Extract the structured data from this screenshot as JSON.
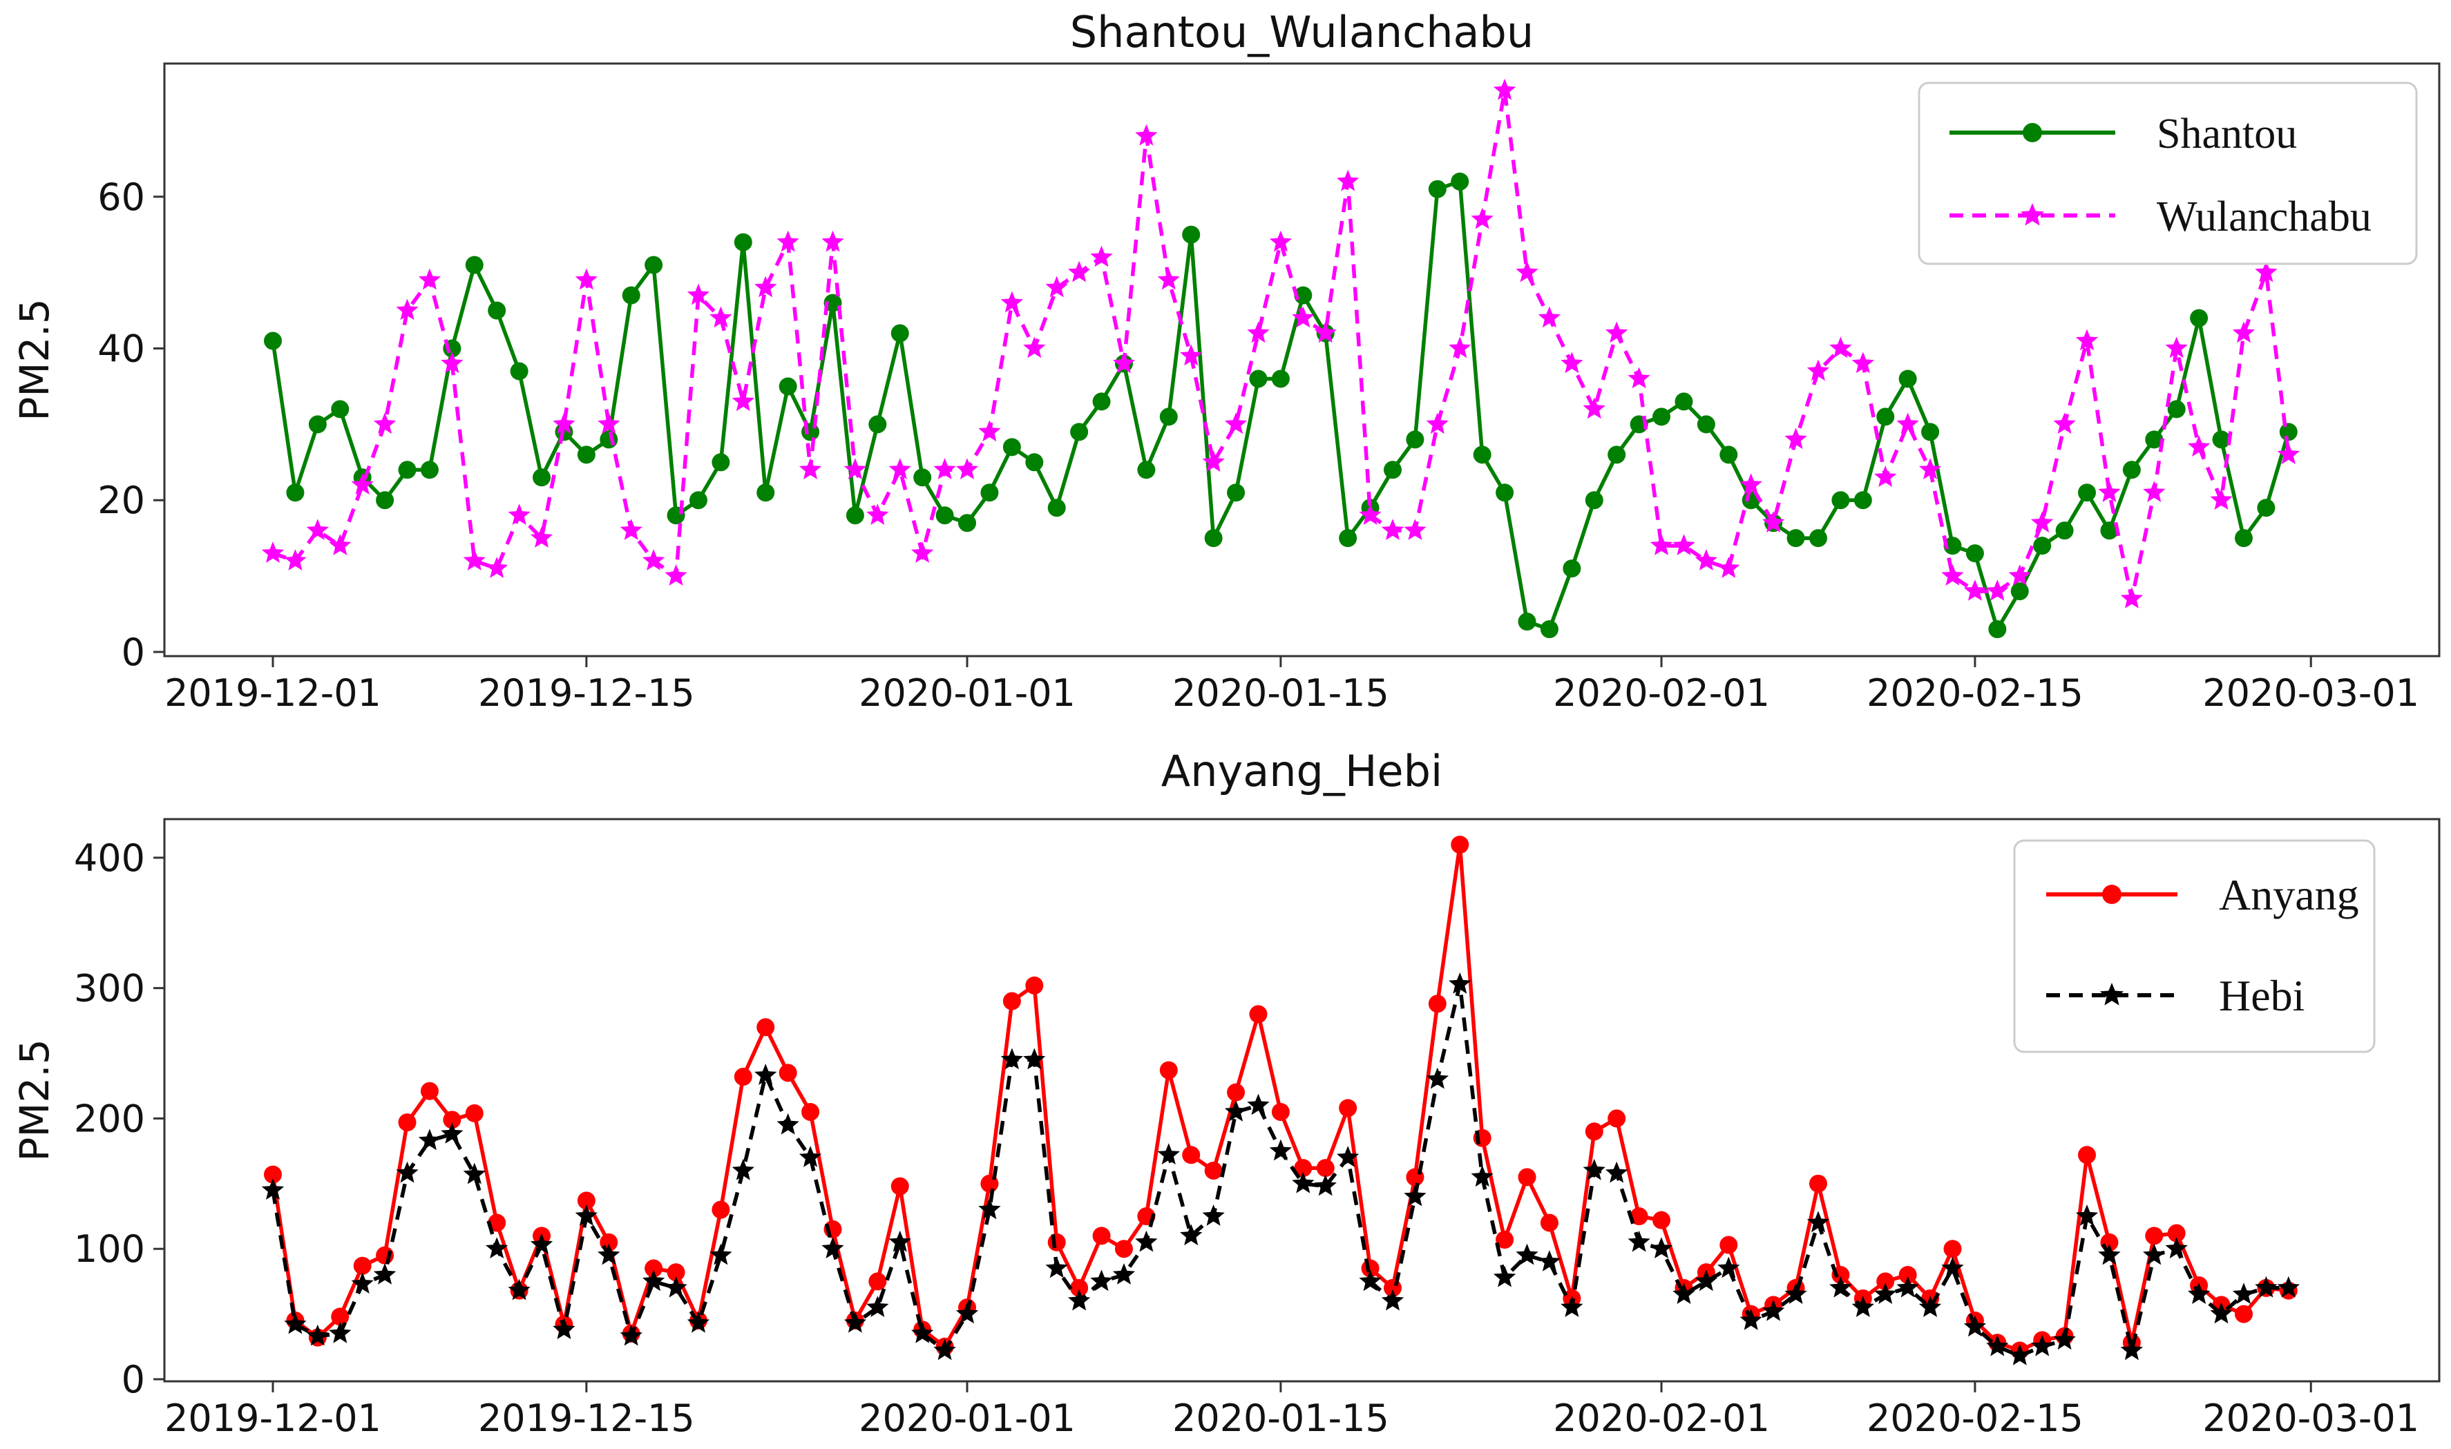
{
  "page": {
    "background": "#ffffff"
  },
  "dates": [
    "2019-12-01",
    "2019-12-02",
    "2019-12-03",
    "2019-12-04",
    "2019-12-05",
    "2019-12-06",
    "2019-12-07",
    "2019-12-08",
    "2019-12-09",
    "2019-12-10",
    "2019-12-11",
    "2019-12-12",
    "2019-12-13",
    "2019-12-14",
    "2019-12-15",
    "2019-12-16",
    "2019-12-17",
    "2019-12-18",
    "2019-12-19",
    "2019-12-20",
    "2019-12-21",
    "2019-12-22",
    "2019-12-23",
    "2019-12-24",
    "2019-12-25",
    "2019-12-26",
    "2019-12-27",
    "2019-12-28",
    "2019-12-29",
    "2019-12-30",
    "2019-12-31",
    "2020-01-01",
    "2020-01-02",
    "2020-01-03",
    "2020-01-04",
    "2020-01-05",
    "2020-01-06",
    "2020-01-07",
    "2020-01-08",
    "2020-01-09",
    "2020-01-10",
    "2020-01-11",
    "2020-01-12",
    "2020-01-13",
    "2020-01-14",
    "2020-01-15",
    "2020-01-16",
    "2020-01-17",
    "2020-01-18",
    "2020-01-19",
    "2020-01-20",
    "2020-01-21",
    "2020-01-22",
    "2020-01-23",
    "2020-01-24",
    "2020-01-25",
    "2020-01-26",
    "2020-01-27",
    "2020-01-28",
    "2020-01-29",
    "2020-01-30",
    "2020-01-31",
    "2020-02-01",
    "2020-02-02",
    "2020-02-03",
    "2020-02-04",
    "2020-02-05",
    "2020-02-06",
    "2020-02-07",
    "2020-02-08",
    "2020-02-09",
    "2020-02-10",
    "2020-02-11",
    "2020-02-12",
    "2020-02-13",
    "2020-02-14",
    "2020-02-15",
    "2020-02-16",
    "2020-02-17",
    "2020-02-18",
    "2020-02-19",
    "2020-02-20",
    "2020-02-21",
    "2020-02-22",
    "2020-02-23",
    "2020-02-24",
    "2020-02-25",
    "2020-02-26",
    "2020-02-27",
    "2020-02-28",
    "2020-02-29"
  ],
  "chart_data": [
    {
      "type": "line",
      "title": "Shantou_Wulanchabu",
      "xlabel": "",
      "ylabel": "PM2.5",
      "grid": false,
      "legend_position": "upper right",
      "x_tick_labels": [
        "2019-12-01",
        "2019-12-15",
        "2020-01-01",
        "2020-01-15",
        "2020-02-01",
        "2020-02-15",
        "2020-03-01"
      ],
      "x_tick_days": [
        0,
        14,
        31,
        45,
        62,
        76,
        91
      ],
      "y_ticks": [
        0,
        20,
        40,
        60
      ],
      "ylim": [
        -0.55,
        77.55
      ],
      "series": [
        {
          "name": "Shantou",
          "color": "#008000",
          "line_style": "solid",
          "marker": "circle",
          "values": [
            41,
            21,
            30,
            32,
            23,
            20,
            24,
            24,
            40,
            51,
            45,
            37,
            23,
            29,
            26,
            28,
            47,
            51,
            18,
            20,
            25,
            54,
            21,
            35,
            29,
            46,
            18,
            30,
            42,
            23,
            18,
            17,
            21,
            27,
            25,
            19,
            29,
            33,
            38,
            24,
            31,
            55,
            15,
            21,
            36,
            36,
            47,
            42,
            15,
            19,
            24,
            28,
            61,
            62,
            26,
            21,
            4,
            3,
            11,
            20,
            26,
            30,
            31,
            33,
            30,
            26,
            20,
            17,
            15,
            15,
            20,
            20,
            31,
            36,
            29,
            14,
            13,
            3,
            8,
            14,
            16,
            21,
            16,
            24,
            28,
            32,
            44,
            28,
            15,
            19,
            29
          ]
        },
        {
          "name": "Wulanchabu",
          "color": "#ff00ff",
          "line_style": "dashed",
          "marker": "star",
          "values": [
            13,
            12,
            16,
            14,
            22,
            30,
            45,
            49,
            38,
            12,
            11,
            18,
            15,
            30,
            49,
            30,
            16,
            12,
            10,
            47,
            44,
            33,
            48,
            54,
            24,
            54,
            24,
            18,
            24,
            13,
            24,
            24,
            29,
            46,
            40,
            48,
            50,
            52,
            38,
            68,
            49,
            39,
            25,
            30,
            42,
            54,
            44,
            42,
            62,
            18,
            16,
            16,
            30,
            40,
            57,
            74,
            50,
            44,
            38,
            32,
            42,
            36,
            14,
            14,
            12,
            11,
            22,
            17,
            28,
            37,
            40,
            38,
            23,
            30,
            24,
            10,
            8,
            8,
            10,
            17,
            30,
            41,
            21,
            7,
            21,
            40,
            27,
            20,
            42,
            50,
            26
          ]
        }
      ]
    },
    {
      "type": "line",
      "title": "Anyang_Hebi",
      "xlabel": "",
      "ylabel": "PM2.5",
      "grid": false,
      "legend_position": "upper right",
      "x_tick_labels": [
        "2019-12-01",
        "2019-12-15",
        "2020-01-01",
        "2020-01-15",
        "2020-02-01",
        "2020-02-15",
        "2020-03-01"
      ],
      "x_tick_days": [
        0,
        14,
        31,
        45,
        62,
        76,
        91
      ],
      "y_ticks": [
        0,
        100,
        200,
        300,
        400
      ],
      "ylim": [
        -1.6,
        429.6
      ],
      "series": [
        {
          "name": "Anyang",
          "color": "#ff0000",
          "line_style": "solid",
          "marker": "circle",
          "values": [
            157,
            45,
            32,
            48,
            87,
            95,
            197,
            221,
            199,
            204,
            120,
            68,
            110,
            42,
            137,
            105,
            35,
            85,
            82,
            45,
            130,
            232,
            270,
            235,
            205,
            115,
            45,
            75,
            148,
            38,
            25,
            55,
            150,
            290,
            302,
            105,
            70,
            110,
            100,
            125,
            237,
            172,
            160,
            220,
            280,
            205,
            162,
            162,
            208,
            85,
            70,
            155,
            288,
            410,
            185,
            107,
            155,
            120,
            62,
            190,
            200,
            125,
            122,
            70,
            82,
            103,
            50,
            57,
            70,
            150,
            80,
            62,
            75,
            80,
            62,
            100,
            45,
            28,
            22,
            30,
            33,
            172,
            105,
            28,
            110,
            112,
            72,
            57,
            50,
            70,
            68
          ]
        },
        {
          "name": "Hebi",
          "color": "#000000",
          "line_style": "dashed",
          "marker": "star",
          "values": [
            145,
            42,
            33,
            35,
            73,
            80,
            158,
            183,
            188,
            157,
            100,
            68,
            103,
            38,
            125,
            95,
            33,
            75,
            70,
            43,
            95,
            160,
            233,
            195,
            170,
            100,
            43,
            55,
            105,
            35,
            22,
            50,
            130,
            245,
            245,
            85,
            60,
            75,
            80,
            105,
            172,
            110,
            125,
            205,
            210,
            175,
            150,
            148,
            170,
            75,
            60,
            140,
            230,
            303,
            155,
            78,
            95,
            90,
            55,
            160,
            158,
            105,
            100,
            65,
            75,
            85,
            45,
            52,
            65,
            120,
            70,
            55,
            65,
            70,
            55,
            85,
            40,
            25,
            18,
            25,
            30,
            125,
            95,
            22,
            95,
            100,
            65,
            50,
            65,
            70,
            70
          ]
        }
      ]
    }
  ]
}
